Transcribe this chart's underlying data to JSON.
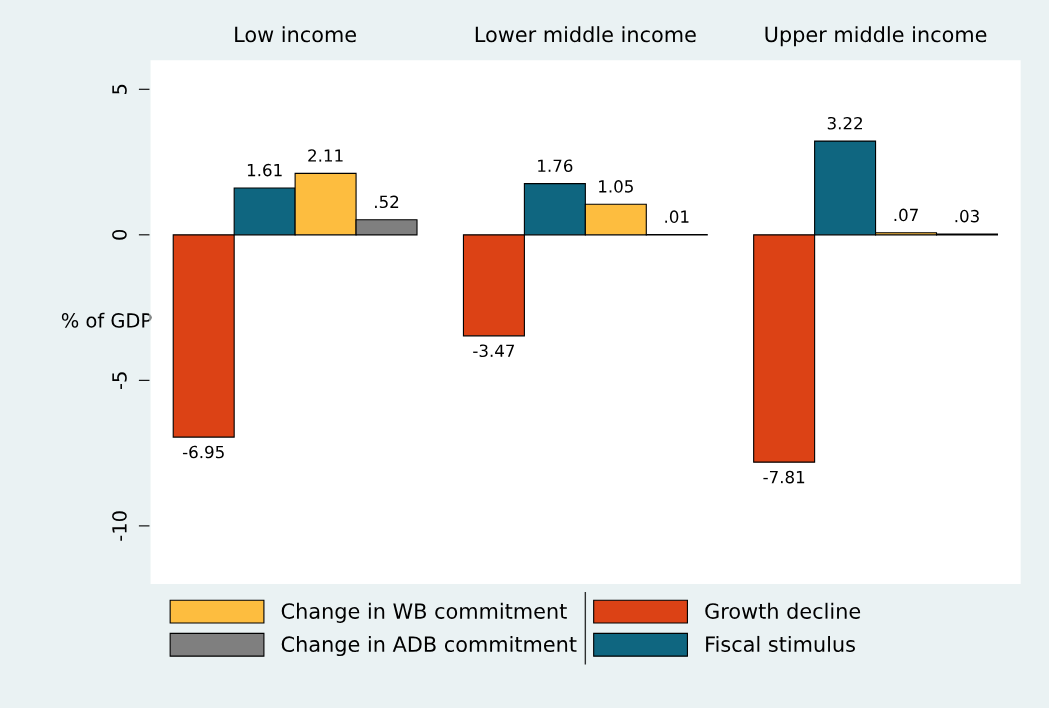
{
  "chart_data": {
    "type": "bar",
    "categories": [
      "Low income",
      "Lower middle income",
      "Upper middle income"
    ],
    "ylabel": "% of GDP",
    "ylim": [
      -12,
      6
    ],
    "yticks": [
      -10,
      -5,
      0,
      5
    ],
    "series": [
      {
        "name": "Growth decline",
        "color": "#dc4215",
        "values": [
          -6.95,
          -3.47,
          -7.81
        ],
        "value_labels": [
          "-6.95",
          "-3.47",
          "-7.81"
        ]
      },
      {
        "name": "Fiscal stimulus",
        "color": "#0f6680",
        "values": [
          1.61,
          1.76,
          3.22
        ],
        "value_labels": [
          "1.61",
          "1.76",
          "3.22"
        ]
      },
      {
        "name": "Change in WB commitment",
        "color": "#fdbd3f",
        "values": [
          2.11,
          1.05,
          0.07
        ],
        "value_labels": [
          "2.11",
          "1.05",
          ".07"
        ]
      },
      {
        "name": "Change in ADB commitment",
        "color": "#7f7f7f",
        "values": [
          0.52,
          0.01,
          0.03
        ],
        "value_labels": [
          ".52",
          ".01",
          ".03"
        ]
      }
    ],
    "grid": false,
    "legend": "bottom"
  }
}
